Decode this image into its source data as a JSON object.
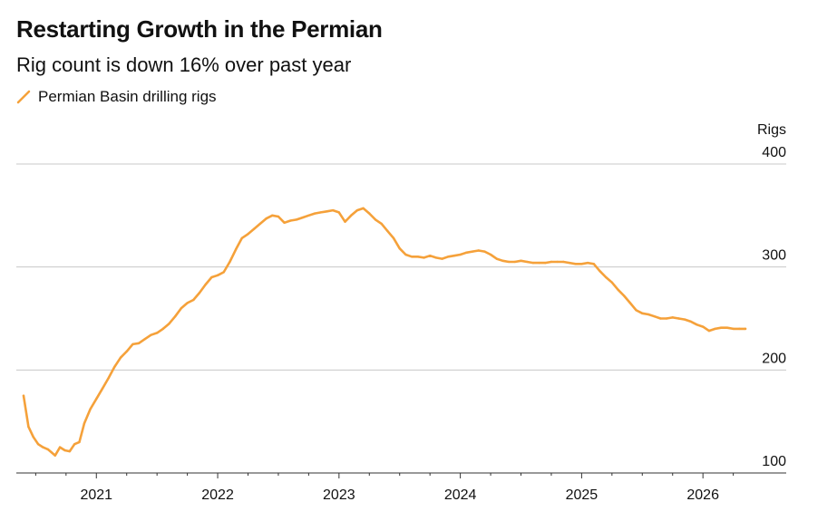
{
  "header": {
    "title": "Restarting Growth in the Permian",
    "subtitle": "Rig count is down 16% over past year"
  },
  "colors": {
    "series": "#f5a13a",
    "grid": "#c8c8c8",
    "axis": "#333333"
  },
  "chart_data": {
    "type": "line",
    "title": "Restarting Growth in the Permian",
    "subtitle": "Rig count is down 16% over past year",
    "ylabel": "Rigs",
    "xlabel": "",
    "ylim": [
      100,
      400
    ],
    "xlim": [
      2020.35,
      2026.45
    ],
    "yticks": [
      100,
      200,
      300,
      400
    ],
    "xticks": [
      "2021",
      "2022",
      "2023",
      "2024",
      "2025",
      "2026"
    ],
    "grid": true,
    "legend_position": "top-left",
    "series": [
      {
        "name": "Permian Basin drilling rigs",
        "x": [
          2020.4,
          2020.44,
          2020.48,
          2020.52,
          2020.56,
          2020.6,
          2020.63,
          2020.66,
          2020.7,
          2020.74,
          2020.78,
          2020.82,
          2020.86,
          2020.9,
          2020.95,
          2021.0,
          2021.05,
          2021.1,
          2021.15,
          2021.2,
          2021.25,
          2021.3,
          2021.35,
          2021.4,
          2021.45,
          2021.5,
          2021.55,
          2021.6,
          2021.65,
          2021.7,
          2021.75,
          2021.8,
          2021.85,
          2021.9,
          2021.95,
          2022.0,
          2022.05,
          2022.1,
          2022.15,
          2022.2,
          2022.25,
          2022.3,
          2022.35,
          2022.4,
          2022.45,
          2022.5,
          2022.55,
          2022.6,
          2022.65,
          2022.7,
          2022.75,
          2022.8,
          2022.85,
          2022.9,
          2022.95,
          2023.0,
          2023.05,
          2023.1,
          2023.15,
          2023.2,
          2023.25,
          2023.3,
          2023.35,
          2023.4,
          2023.45,
          2023.5,
          2023.55,
          2023.6,
          2023.65,
          2023.7,
          2023.75,
          2023.8,
          2023.85,
          2023.9,
          2023.95,
          2024.0,
          2024.05,
          2024.1,
          2024.15,
          2024.2,
          2024.25,
          2024.3,
          2024.35,
          2024.4,
          2024.45,
          2024.5,
          2024.55,
          2024.6,
          2024.65,
          2024.7,
          2024.75,
          2024.8,
          2024.85,
          2024.9,
          2024.95,
          2025.0,
          2025.05,
          2025.1,
          2025.15,
          2025.2,
          2025.25,
          2025.3,
          2025.35,
          2025.4,
          2025.45,
          2025.5,
          2025.55,
          2025.6,
          2025.65,
          2025.7,
          2025.75,
          2025.8,
          2025.85,
          2025.9,
          2025.95,
          2026.0,
          2026.05,
          2026.1,
          2026.15,
          2026.2,
          2026.25,
          2026.3,
          2026.35
        ],
        "y": [
          175,
          145,
          135,
          128,
          125,
          123,
          120,
          117,
          125,
          122,
          121,
          128,
          130,
          148,
          162,
          172,
          182,
          192,
          203,
          212,
          218,
          225,
          226,
          230,
          234,
          236,
          240,
          245,
          252,
          260,
          265,
          268,
          275,
          283,
          290,
          292,
          295,
          305,
          317,
          328,
          332,
          337,
          342,
          347,
          350,
          349,
          343,
          345,
          346,
          348,
          350,
          352,
          353,
          354,
          355,
          353,
          344,
          350,
          355,
          357,
          352,
          346,
          342,
          335,
          328,
          318,
          312,
          310,
          310,
          309,
          311,
          309,
          308,
          310,
          311,
          312,
          314,
          315,
          316,
          315,
          312,
          308,
          306,
          305,
          305,
          306,
          305,
          304,
          304,
          304,
          305,
          305,
          305,
          304,
          303,
          303,
          304,
          303,
          296,
          290,
          285,
          278,
          272,
          265,
          258,
          255,
          254,
          252,
          250,
          250,
          251,
          250,
          249,
          247,
          244,
          242,
          238,
          240,
          241,
          241,
          240,
          240,
          240
        ]
      }
    ]
  }
}
